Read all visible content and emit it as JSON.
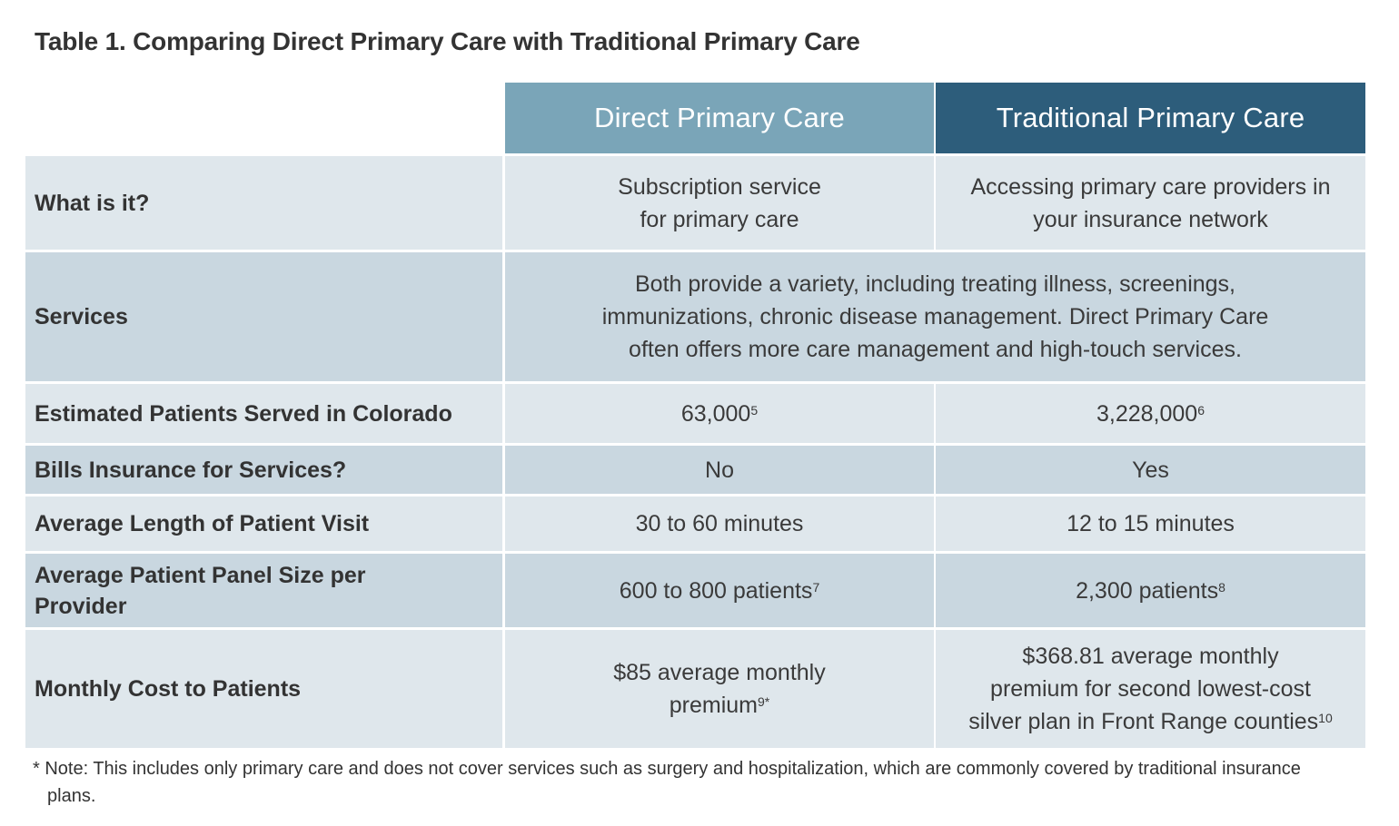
{
  "title": "Table 1. Comparing Direct Primary Care with Traditional Primary Care",
  "columns": {
    "dpc": "Direct Primary Care",
    "tpc": "Traditional Primary Care"
  },
  "rows": {
    "what": {
      "label": "What is it?",
      "dpc_line1": "Subscription service",
      "dpc_line2": "for primary care",
      "tpc_line1": "Accessing primary care providers in",
      "tpc_line2": "your insurance network"
    },
    "services": {
      "label": "Services",
      "line1": "Both provide a variety, including treating illness, screenings,",
      "line2": "immunizations, chronic disease management. Direct Primary Care",
      "line3": "often offers more care management and high-touch services."
    },
    "patients": {
      "label": "Estimated Patients Served in Colorado",
      "dpc": "63,000",
      "dpc_ref": "5",
      "tpc": "3,228,000",
      "tpc_ref": "6"
    },
    "bills": {
      "label": "Bills Insurance for Services?",
      "dpc": "No",
      "tpc": "Yes"
    },
    "visit": {
      "label": "Average Length of Patient Visit",
      "dpc": "30 to 60 minutes",
      "tpc": "12 to 15 minutes"
    },
    "panel": {
      "label_line1": "Average Patient Panel Size per",
      "label_line2": "Provider",
      "dpc": "600 to 800 patients",
      "dpc_ref": "7",
      "tpc": "2,300 patients",
      "tpc_ref": "8"
    },
    "cost": {
      "label": "Monthly Cost to Patients",
      "dpc_line1": "$85 average monthly",
      "dpc_line2": "premium",
      "dpc_ref": "9*",
      "tpc_line1": "$368.81 average monthly",
      "tpc_line2": "premium for second lowest-cost",
      "tpc_line3": "silver plan in Front Range counties",
      "tpc_ref": "10"
    }
  },
  "note": "* Note: This includes only primary care and does not cover services such as surgery and hospitalization, which are commonly covered by traditional insurance plans."
}
